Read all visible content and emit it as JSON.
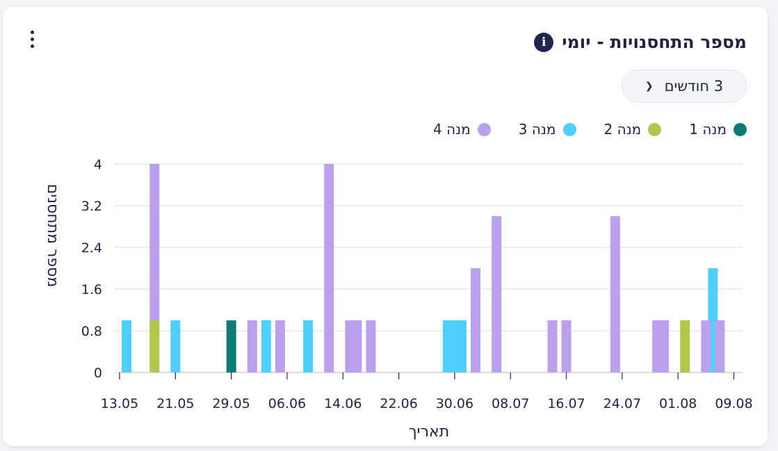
{
  "title": "מספר התחסנויות - יומי",
  "info_icon": "info-icon",
  "menu_icon": "kebab-menu-icon",
  "period_select": {
    "value": "3 חודשים",
    "icon": "chevron-down-icon"
  },
  "colors": {
    "dose1": "#0d7c74",
    "dose2": "#b3c64a",
    "dose3": "#4fcefb",
    "dose4": "#bba0ec",
    "grid": "#dde2ee",
    "axis": "#1f2340"
  },
  "chart_data": {
    "type": "bar",
    "stacked": true,
    "xlabel": "תאריך",
    "ylabel": "מספר מתחסנים",
    "ylim": [
      0,
      4
    ],
    "yticks": [
      "0",
      "0.8",
      "1.6",
      "2.4",
      "3.2",
      "4"
    ],
    "xtick_labels": [
      "13.05",
      "21.05",
      "29.05",
      "06.06",
      "14.06",
      "22.06",
      "30.06",
      "08.07",
      "16.07",
      "24.07",
      "01.08",
      "09.08"
    ],
    "x_start_date": "13.05",
    "legend_position": "top-right",
    "grid": true,
    "series": [
      {
        "name": "מנה 1",
        "color": "#0d7c74",
        "points": [
          {
            "x": "29.05",
            "y": 1
          }
        ]
      },
      {
        "name": "מנה 2",
        "color": "#b3c64a",
        "points": [
          {
            "x": "18.05",
            "y": 1
          },
          {
            "x": "02.08",
            "y": 1
          }
        ]
      },
      {
        "name": "מנה 3",
        "color": "#4fcefb",
        "points": [
          {
            "x": "14.05",
            "y": 1
          },
          {
            "x": "21.05",
            "y": 1
          },
          {
            "x": "03.06",
            "y": 1
          },
          {
            "x": "09.06",
            "y": 1
          },
          {
            "x": "29.06",
            "y": 1
          },
          {
            "x": "30.06",
            "y": 1
          },
          {
            "x": "01.07",
            "y": 1
          },
          {
            "x": "06.08",
            "y": 2
          }
        ]
      },
      {
        "name": "מנה 4",
        "color": "#bba0ec",
        "points": [
          {
            "x": "18.05",
            "y": 3
          },
          {
            "x": "01.06",
            "y": 1
          },
          {
            "x": "05.06",
            "y": 1
          },
          {
            "x": "12.06",
            "y": 4
          },
          {
            "x": "15.06",
            "y": 1
          },
          {
            "x": "16.06",
            "y": 1
          },
          {
            "x": "18.06",
            "y": 1
          },
          {
            "x": "03.07",
            "y": 2
          },
          {
            "x": "06.07",
            "y": 3
          },
          {
            "x": "14.07",
            "y": 1
          },
          {
            "x": "16.07",
            "y": 1
          },
          {
            "x": "23.07",
            "y": 3
          },
          {
            "x": "29.07",
            "y": 1
          },
          {
            "x": "30.07",
            "y": 1
          },
          {
            "x": "05.08",
            "y": 1
          },
          {
            "x": "07.08",
            "y": 1
          }
        ]
      }
    ]
  }
}
